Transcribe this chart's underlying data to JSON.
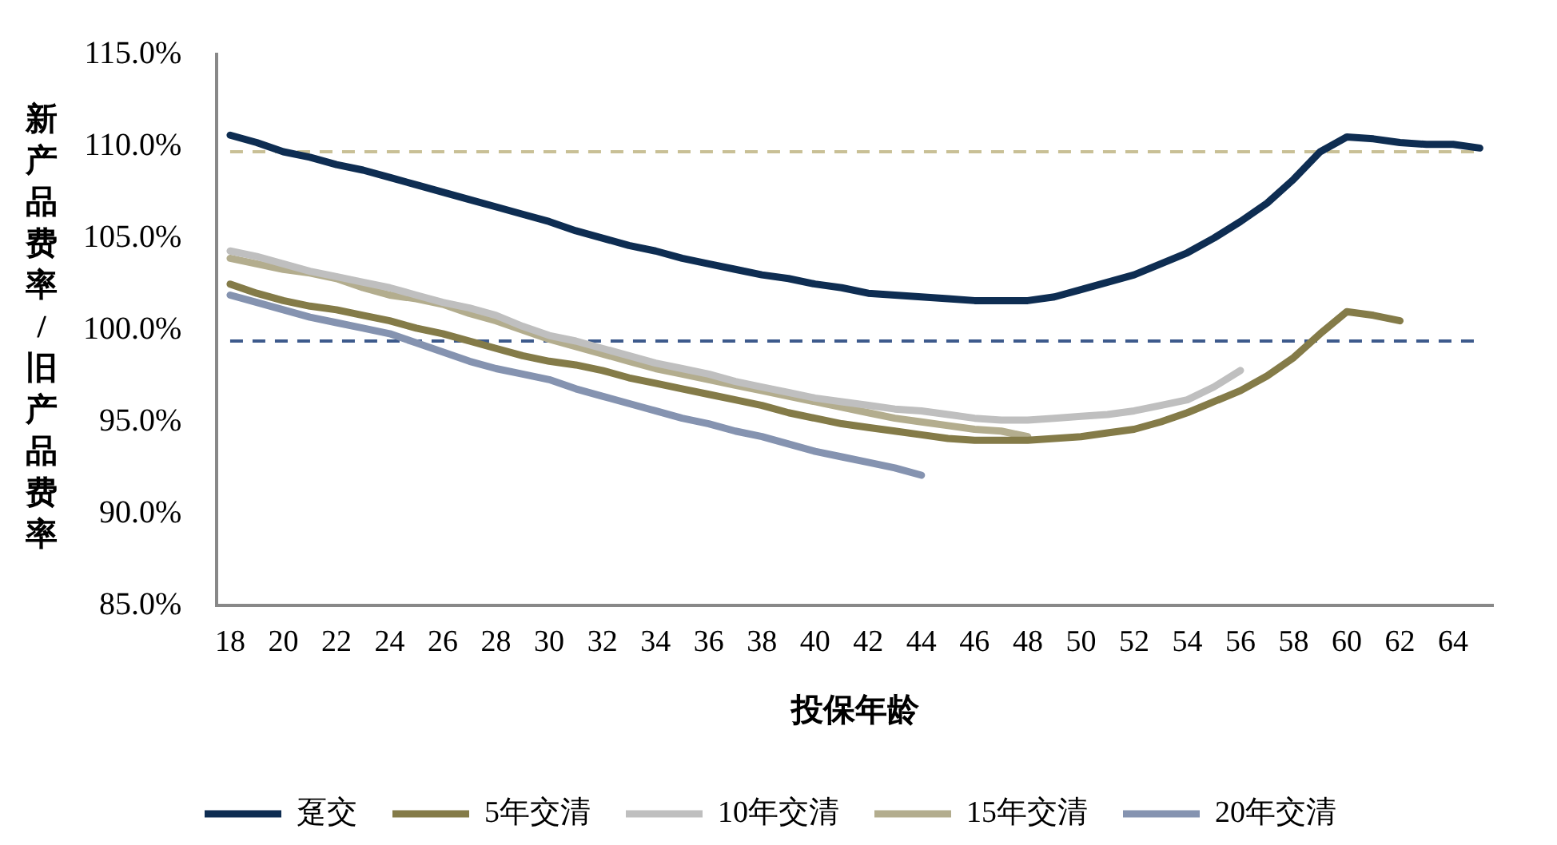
{
  "chart_data": {
    "type": "line",
    "xlabel": "投保年龄",
    "ylabel": "新产品费率/旧产品费率",
    "categories": [
      "18",
      null,
      "20",
      null,
      "22",
      null,
      "24",
      null,
      "26",
      null,
      "28",
      null,
      "30",
      null,
      "32",
      null,
      "34",
      null,
      "36",
      null,
      "38",
      null,
      "40",
      null,
      "42",
      null,
      "44",
      null,
      "46",
      null,
      "48",
      null,
      "50",
      null,
      "52",
      null,
      "54",
      null,
      "56",
      null,
      "58",
      null,
      "60",
      null,
      "62",
      null,
      "64",
      null
    ],
    "series": [
      {
        "name": "趸交",
        "color": "#0e2d52",
        "values": [
          110.6,
          110.2,
          109.7,
          109.4,
          109.0,
          108.7,
          108.3,
          107.9,
          107.5,
          107.1,
          106.7,
          106.3,
          105.9,
          105.4,
          105.0,
          104.6,
          104.3,
          103.9,
          103.6,
          103.3,
          103.0,
          102.8,
          102.5,
          102.3,
          102.0,
          101.9,
          101.8,
          101.7,
          101.6,
          101.6,
          101.6,
          101.8,
          102.2,
          102.6,
          103.0,
          103.6,
          104.2,
          105.0,
          105.9,
          106.9,
          108.2,
          109.7,
          110.5,
          110.4,
          110.2,
          110.1,
          110.1,
          109.9
        ]
      },
      {
        "name": "5年交清",
        "color": "#847b48",
        "values": [
          102.5,
          102.0,
          101.6,
          101.3,
          101.1,
          100.8,
          100.5,
          100.1,
          99.8,
          99.4,
          99.0,
          98.6,
          98.3,
          98.1,
          97.8,
          97.4,
          97.1,
          96.8,
          96.5,
          96.2,
          95.9,
          95.5,
          95.2,
          94.9,
          94.7,
          94.5,
          94.3,
          94.1,
          94.0,
          94.0,
          94.0,
          94.1,
          94.2,
          94.4,
          94.6,
          95.0,
          95.5,
          96.1,
          96.7,
          97.5,
          98.5,
          99.8,
          101.0,
          100.8,
          100.5,
          null,
          null,
          null
        ]
      },
      {
        "name": "10年交清",
        "color": "#bfbfbf",
        "values": [
          104.3,
          104.0,
          103.6,
          103.2,
          102.9,
          102.6,
          102.3,
          101.9,
          101.5,
          101.2,
          100.8,
          100.2,
          99.7,
          99.4,
          99.0,
          98.6,
          98.2,
          97.9,
          97.6,
          97.2,
          96.9,
          96.6,
          96.3,
          96.1,
          95.9,
          95.7,
          95.6,
          95.4,
          95.2,
          95.1,
          95.1,
          95.2,
          95.3,
          95.4,
          95.6,
          95.9,
          96.2,
          96.9,
          97.8,
          null,
          null,
          null,
          null,
          null,
          null,
          null,
          null,
          null
        ]
      },
      {
        "name": "15年交清",
        "color": "#b3ad8e",
        "values": [
          103.9,
          103.6,
          103.3,
          103.1,
          102.8,
          102.3,
          101.9,
          101.7,
          101.4,
          100.9,
          100.5,
          100.0,
          99.5,
          99.1,
          98.7,
          98.3,
          97.9,
          97.6,
          97.3,
          97.0,
          96.7,
          96.4,
          96.1,
          95.8,
          95.5,
          95.2,
          95.0,
          94.8,
          94.6,
          94.5,
          94.2,
          null,
          null,
          null,
          null,
          null,
          null,
          null,
          null,
          null,
          null,
          null,
          null,
          null,
          null,
          null,
          null,
          null
        ]
      },
      {
        "name": "20年交清",
        "color": "#8593b0",
        "values": [
          101.9,
          101.5,
          101.1,
          100.7,
          100.4,
          100.1,
          99.8,
          99.3,
          98.8,
          98.3,
          97.9,
          97.6,
          97.3,
          96.8,
          96.4,
          96.0,
          95.6,
          95.2,
          94.9,
          94.5,
          94.2,
          93.8,
          93.4,
          93.1,
          92.8,
          92.5,
          92.1,
          null,
          null,
          null,
          null,
          null,
          null,
          null,
          null,
          null,
          null,
          null,
          null,
          null,
          null,
          null,
          null,
          null,
          null,
          null,
          null,
          null
        ]
      }
    ],
    "ylim": [
      85,
      115
    ],
    "yticks": [
      {
        "value": 85,
        "label": "85.0%"
      },
      {
        "value": 90,
        "label": "90.0%"
      },
      {
        "value": 95,
        "label": "95.0%"
      },
      {
        "value": 100,
        "label": "100.0%"
      },
      {
        "value": 105,
        "label": "105.0%"
      },
      {
        "value": 110,
        "label": "110.0%"
      },
      {
        "value": 115,
        "label": "115.0%"
      }
    ],
    "ref_lines": [
      {
        "axis": "y",
        "value": 109.7,
        "color": "#c9c096",
        "line_style": "dashed"
      },
      {
        "axis": "y",
        "value": 99.4,
        "color": "#3d5a8c",
        "line_style": "dashed"
      }
    ],
    "grid": false,
    "legend": "bottom",
    "marker": "none",
    "line_style": "solid"
  }
}
